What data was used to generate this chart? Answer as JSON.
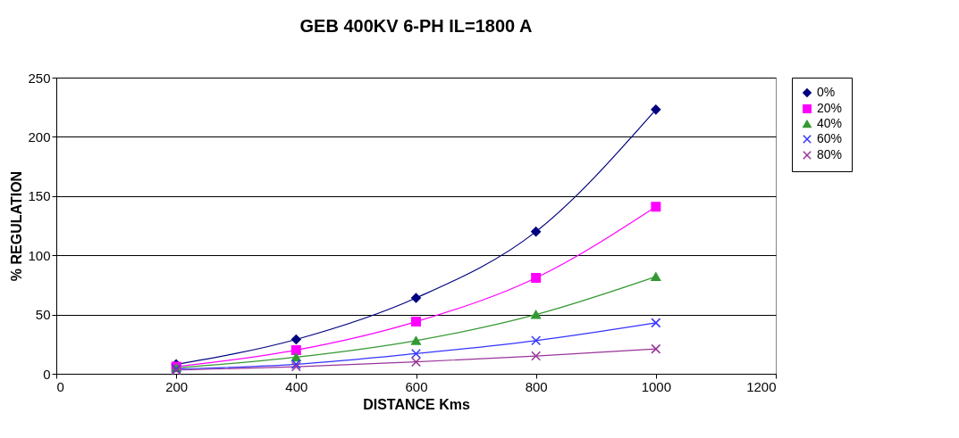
{
  "chart_data": {
    "type": "line",
    "title": "GEB 400KV 6-PH IL=1800 A",
    "xlabel": "DISTANCE Kms",
    "ylabel": "% REGULATION",
    "x": [
      200,
      400,
      600,
      800,
      1000
    ],
    "xlim": [
      0,
      1200
    ],
    "xticks": [
      0,
      200,
      400,
      600,
      800,
      1000,
      1200
    ],
    "ylim": [
      0,
      250
    ],
    "yticks": [
      0,
      50,
      100,
      150,
      200,
      250
    ],
    "grid": "y",
    "legend": "right",
    "series": [
      {
        "name": "0%",
        "color": "#000080",
        "marker": "diamond",
        "values": [
          8,
          29,
          64,
          120,
          223
        ]
      },
      {
        "name": "20%",
        "color": "#ff00ff",
        "marker": "square",
        "values": [
          6,
          20,
          44,
          81,
          141
        ]
      },
      {
        "name": "40%",
        "color": "#339933",
        "marker": "triangle",
        "values": [
          5,
          14,
          28,
          50,
          82
        ]
      },
      {
        "name": "60%",
        "color": "#3333ff",
        "marker": "cross",
        "values": [
          4,
          8,
          17,
          28,
          43
        ]
      },
      {
        "name": "80%",
        "color": "#993399",
        "marker": "cross",
        "values": [
          3,
          6,
          10,
          15,
          21
        ]
      }
    ]
  }
}
